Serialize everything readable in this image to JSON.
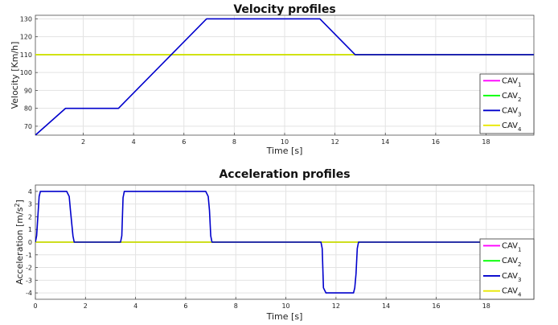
{
  "chart_data": [
    {
      "type": "line",
      "title": "Velocity profiles",
      "xlabel": "Time [s]",
      "ylabel": "Velocity [Km/h]",
      "xlim": [
        0.1,
        19.9
      ],
      "ylim": [
        65,
        132
      ],
      "xticks": [
        2,
        4,
        6,
        8,
        10,
        12,
        14,
        16,
        18
      ],
      "yticks": [
        70,
        80,
        90,
        100,
        110,
        120,
        130
      ],
      "grid": true,
      "legend_position": "bottom-right",
      "series": [
        {
          "name": "CAV",
          "sub": "1",
          "color": "#ff00ff",
          "x": [
            0.1,
            19.9
          ],
          "y": [
            110,
            110
          ]
        },
        {
          "name": "CAV",
          "sub": "2",
          "color": "#00ff00",
          "x": [
            0.1,
            19.9
          ],
          "y": [
            110,
            110
          ]
        },
        {
          "name": "CAV",
          "sub": "3",
          "color": "#0000cc",
          "x": [
            0.1,
            1.3,
            3.4,
            6.9,
            11.4,
            12.8,
            19.9
          ],
          "y": [
            65,
            80,
            80,
            130,
            130,
            110,
            110
          ]
        },
        {
          "name": "CAV",
          "sub": "4",
          "color": "#e8e800",
          "x": [
            0.1,
            19.9
          ],
          "y": [
            110,
            110
          ]
        }
      ]
    },
    {
      "type": "line",
      "title": "Acceleration profiles",
      "xlabel": "Time [s]",
      "ylabel": "Acceleration [m/s",
      "ylabel_sup": "2",
      "ylabel_end": "]",
      "xlim": [
        0,
        19.9
      ],
      "ylim": [
        -4.5,
        4.5
      ],
      "xticks": [
        0,
        2,
        4,
        6,
        8,
        10,
        12,
        14,
        16,
        18
      ],
      "yticks": [
        -4,
        -3,
        -2,
        -1,
        0,
        1,
        2,
        3,
        4
      ],
      "grid": true,
      "legend_position": "bottom-right",
      "series": [
        {
          "name": "CAV",
          "sub": "1",
          "color": "#ff00ff",
          "x": [
            0,
            19.9
          ],
          "y": [
            0,
            0
          ]
        },
        {
          "name": "CAV",
          "sub": "2",
          "color": "#00ff00",
          "x": [
            0,
            19.9
          ],
          "y": [
            0,
            0
          ]
        },
        {
          "name": "CAV",
          "sub": "3",
          "color": "#0000cc",
          "x": [
            0,
            0.05,
            0.15,
            0.2,
            1.25,
            1.35,
            1.4,
            1.5,
            1.55,
            3.4,
            3.45,
            3.5,
            3.55,
            3.65,
            6.8,
            6.9,
            6.95,
            7.0,
            7.05,
            11.4,
            11.45,
            11.5,
            11.6,
            12.7,
            12.75,
            12.8,
            12.85,
            12.9,
            19.9
          ],
          "y": [
            0,
            0.5,
            3.6,
            4,
            4,
            3.6,
            2.5,
            0.5,
            0,
            0,
            0.5,
            3.5,
            4,
            4,
            4,
            3.6,
            2.5,
            0.5,
            0,
            0,
            -0.5,
            -3.6,
            -4,
            -4,
            -3.6,
            -2.5,
            -0.5,
            0,
            0
          ]
        },
        {
          "name": "CAV",
          "sub": "4",
          "color": "#e8e800",
          "x": [
            0,
            19.9
          ],
          "y": [
            0,
            0
          ]
        }
      ]
    }
  ]
}
